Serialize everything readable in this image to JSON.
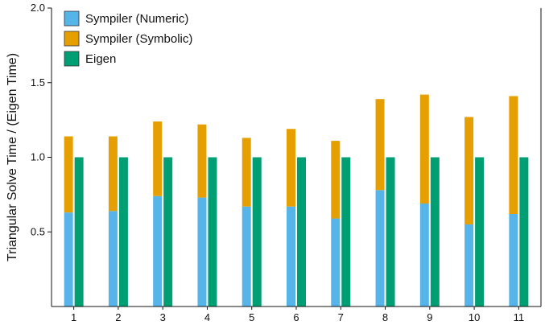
{
  "chart_data": {
    "type": "bar",
    "stacked_group": [
      "Sympiler (Numeric)",
      "Sympiler (Symbolic)"
    ],
    "categories": [
      "1",
      "2",
      "3",
      "4",
      "5",
      "6",
      "7",
      "8",
      "9",
      "10",
      "11"
    ],
    "series": [
      {
        "name": "Sympiler (Numeric)",
        "color": "#56B4E9",
        "values": [
          0.63,
          0.64,
          0.74,
          0.73,
          0.67,
          0.67,
          0.59,
          0.78,
          0.69,
          0.55,
          0.62
        ]
      },
      {
        "name": "Sympiler (Symbolic)",
        "color": "#E69F00",
        "values": [
          0.51,
          0.5,
          0.5,
          0.49,
          0.46,
          0.52,
          0.52,
          0.61,
          0.73,
          0.72,
          0.79
        ]
      },
      {
        "name": "Eigen",
        "color": "#009E73",
        "values": [
          1.0,
          1.0,
          1.0,
          1.0,
          1.0,
          1.0,
          1.0,
          1.0,
          1.0,
          1.0,
          1.0
        ]
      }
    ],
    "title": "",
    "xlabel": "",
    "ylabel": "Triangular Solve Time / (Eigen Time)",
    "ylim": [
      0.0,
      2.0
    ],
    "yticks": [
      "0.5",
      "1.0",
      "1.5",
      "2.0"
    ],
    "grid": false,
    "legend_position": "top-left"
  }
}
